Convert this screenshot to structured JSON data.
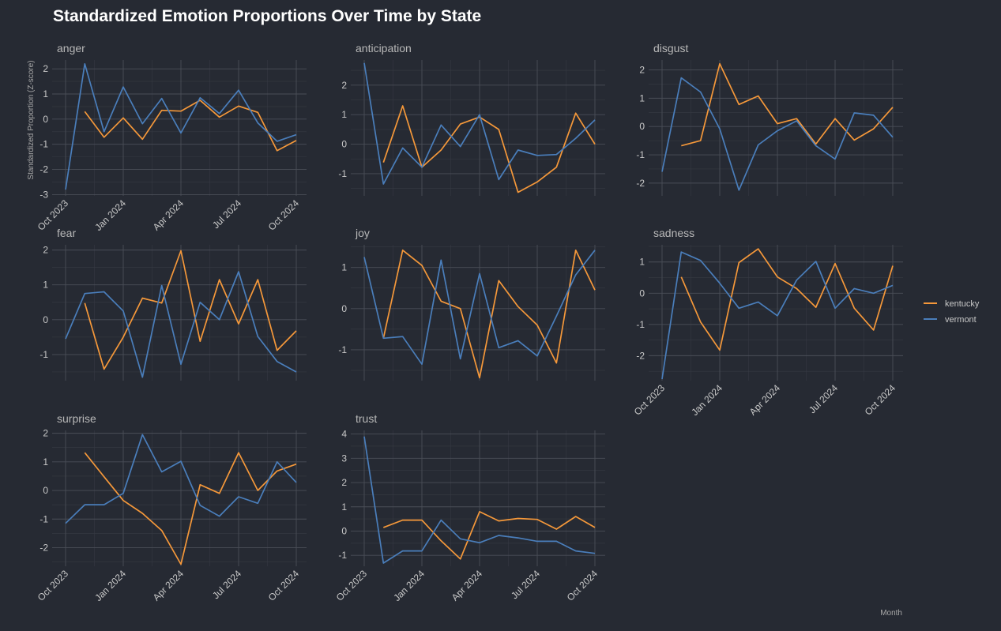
{
  "title": "Standardized Emotion Proportions Over Time by State",
  "chart_data": {
    "type": "line",
    "ylabel": "Standardized Proportion (Z-score)",
    "xlabel": "Month",
    "x": [
      "2023-10",
      "2023-11",
      "2023-12",
      "2024-01",
      "2024-02",
      "2024-03",
      "2024-04",
      "2024-05",
      "2024-06",
      "2024-07",
      "2024-08",
      "2024-09",
      "2024-10"
    ],
    "x_ticks": [
      "Oct 2023",
      "Jan 2024",
      "Apr 2024",
      "Jul 2024",
      "Oct 2024"
    ],
    "legend": {
      "position": "right",
      "entries": [
        "kentucky",
        "vermont"
      ]
    },
    "colors": {
      "kentucky": "#f5983a",
      "vermont": "#4a7ebb"
    },
    "grid": true,
    "panels": [
      {
        "name": "anger",
        "ylim": [
          -3.05,
          2.35
        ],
        "yticks": [
          -3,
          -2,
          -1,
          0,
          1,
          2
        ],
        "series": [
          {
            "name": "kentucky",
            "values": [
              null,
              0.3,
              -0.72,
              0.05,
              -0.8,
              0.35,
              0.32,
              0.75,
              0.08,
              0.52,
              0.27,
              -1.25,
              -0.85
            ]
          },
          {
            "name": "vermont",
            "values": [
              -2.8,
              2.2,
              -0.5,
              1.28,
              -0.18,
              0.82,
              -0.55,
              0.85,
              0.22,
              1.15,
              -0.15,
              -0.88,
              -0.62
            ]
          }
        ]
      },
      {
        "name": "anticipation",
        "ylim": [
          -1.75,
          2.85
        ],
        "yticks": [
          -1,
          0,
          1,
          2
        ],
        "series": [
          {
            "name": "kentucky",
            "values": [
              null,
              -0.62,
              1.3,
              -0.78,
              -0.2,
              0.68,
              0.92,
              0.5,
              -1.63,
              -1.28,
              -0.78,
              1.05,
              0.0
            ]
          },
          {
            "name": "vermont",
            "values": [
              2.75,
              -1.35,
              -0.13,
              -0.78,
              0.65,
              -0.08,
              1.0,
              -1.2,
              -0.2,
              -0.38,
              -0.35,
              0.2,
              0.82
            ]
          }
        ]
      },
      {
        "name": "disgust",
        "ylim": [
          -2.45,
          2.35
        ],
        "yticks": [
          -2,
          -1,
          0,
          1,
          2
        ],
        "series": [
          {
            "name": "kentucky",
            "values": [
              null,
              -0.68,
              -0.5,
              2.22,
              0.78,
              1.08,
              0.1,
              0.28,
              -0.62,
              0.28,
              -0.48,
              -0.08,
              0.68
            ]
          },
          {
            "name": "vermont",
            "values": [
              -1.6,
              1.72,
              1.22,
              -0.08,
              -2.25,
              -0.65,
              -0.15,
              0.2,
              -0.68,
              -1.15,
              0.48,
              0.4,
              -0.38
            ]
          }
        ]
      },
      {
        "name": "fear",
        "ylim": [
          -1.75,
          2.15
        ],
        "yticks": [
          -1,
          0,
          1,
          2
        ],
        "series": [
          {
            "name": "kentucky",
            "values": [
              null,
              0.48,
              -1.42,
              -0.5,
              0.62,
              0.48,
              1.98,
              -0.62,
              1.15,
              -0.12,
              1.15,
              -0.88,
              -0.32
            ]
          },
          {
            "name": "vermont",
            "values": [
              -0.55,
              0.75,
              0.8,
              0.25,
              -1.65,
              0.98,
              -1.28,
              0.5,
              0.0,
              1.38,
              -0.48,
              -1.2,
              -1.5
            ]
          }
        ]
      },
      {
        "name": "joy",
        "ylim": [
          -1.75,
          1.55
        ],
        "yticks": [
          -1,
          0,
          1
        ],
        "series": [
          {
            "name": "kentucky",
            "values": [
              null,
              -0.72,
              1.42,
              1.05,
              0.18,
              0.0,
              -1.68,
              0.68,
              0.05,
              -0.4,
              -1.32,
              1.42,
              0.45
            ]
          },
          {
            "name": "vermont",
            "values": [
              1.25,
              -0.72,
              -0.68,
              -1.35,
              1.18,
              -1.22,
              0.85,
              -0.95,
              -0.78,
              -1.15,
              -0.18,
              0.82,
              1.42
            ]
          }
        ]
      },
      {
        "name": "sadness",
        "ylim": [
          -2.8,
          1.55
        ],
        "yticks": [
          -2,
          -1,
          0,
          1
        ],
        "series": [
          {
            "name": "kentucky",
            "values": [
              null,
              0.52,
              -0.92,
              -1.82,
              0.98,
              1.42,
              0.52,
              0.15,
              -0.45,
              0.95,
              -0.48,
              -1.18,
              0.88
            ]
          },
          {
            "name": "vermont",
            "values": [
              -2.75,
              1.32,
              1.05,
              0.32,
              -0.48,
              -0.28,
              -0.72,
              0.42,
              1.02,
              -0.48,
              0.15,
              0.0,
              0.25
            ]
          }
        ]
      },
      {
        "name": "surprise",
        "ylim": [
          -2.65,
          2.1
        ],
        "yticks": [
          -2,
          -1,
          0,
          1,
          2
        ],
        "series": [
          {
            "name": "kentucky",
            "values": [
              null,
              1.32,
              0.48,
              -0.35,
              -0.8,
              -1.4,
              -2.58,
              0.2,
              -0.1,
              1.32,
              0.0,
              0.68,
              0.92
            ]
          },
          {
            "name": "vermont",
            "values": [
              -1.15,
              -0.5,
              -0.5,
              -0.1,
              1.95,
              0.65,
              1.02,
              -0.52,
              -0.9,
              -0.22,
              -0.45,
              1.0,
              0.28
            ]
          }
        ]
      },
      {
        "name": "trust",
        "ylim": [
          -1.45,
          4.15
        ],
        "yticks": [
          -1,
          0,
          1,
          2,
          3,
          4
        ],
        "series": [
          {
            "name": "kentucky",
            "values": [
              null,
              0.15,
              0.45,
              0.45,
              -0.4,
              -1.15,
              0.8,
              0.42,
              0.52,
              0.48,
              0.08,
              0.6,
              0.15
            ]
          },
          {
            "name": "vermont",
            "values": [
              3.9,
              -1.32,
              -0.82,
              -0.82,
              0.45,
              -0.32,
              -0.48,
              -0.18,
              -0.28,
              -0.42,
              -0.42,
              -0.82,
              -0.92
            ]
          }
        ]
      }
    ]
  }
}
